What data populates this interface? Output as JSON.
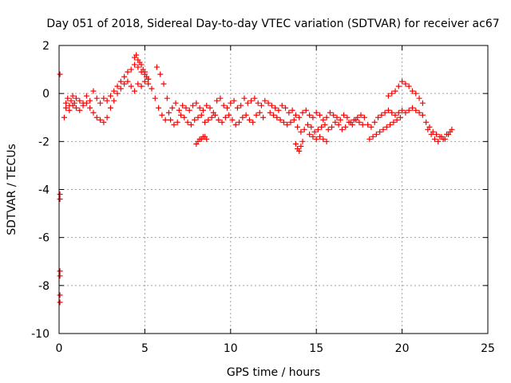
{
  "chart_data": {
    "type": "scatter",
    "title": "Day 051 of 2018, Sidereal Day-to-day VTEC variation (SDTVAR) for receiver ac67",
    "xlabel": "GPS time / hours",
    "ylabel": "SDTVAR / TECUs",
    "xlim": [
      0,
      25
    ],
    "ylim": [
      -10,
      2
    ],
    "xticks": [
      0,
      5,
      10,
      15,
      20,
      25
    ],
    "yticks": [
      -10,
      -8,
      -6,
      -4,
      -2,
      0,
      2
    ],
    "xtick_labels": [
      "0",
      "5",
      "10",
      "15",
      "20",
      "25"
    ],
    "ytick_labels": [
      "-10",
      "-8",
      "-6",
      "-4",
      "-2",
      "0",
      "2"
    ],
    "grid": true,
    "marker": "plus",
    "marker_color": "#ff0000",
    "series": [
      {
        "name": "SDTVAR",
        "x": [
          0.05,
          0.05,
          0.05,
          0.05,
          0.05,
          0.05,
          0.05,
          0.3,
          0.4,
          0.5,
          0.6,
          0.7,
          0.8,
          0.9,
          1.0,
          1.2,
          1.4,
          1.6,
          1.8,
          2.0,
          2.2,
          2.4,
          2.6,
          2.8,
          3.0,
          3.2,
          3.4,
          3.6,
          3.8,
          4.0,
          4.2,
          4.4,
          4.6,
          4.8,
          5.0,
          5.2,
          5.4,
          0.4,
          0.6,
          0.8,
          1.0,
          1.2,
          1.4,
          1.6,
          1.8,
          2.0,
          2.2,
          2.4,
          2.6,
          2.8,
          3.0,
          3.2,
          3.4,
          3.6,
          3.8,
          4.0,
          4.2,
          4.4,
          4.6,
          4.8,
          5.0,
          5.2,
          4.4,
          4.5,
          4.6,
          4.7,
          4.8,
          4.9,
          5.0,
          5.1,
          5.2,
          5.6,
          5.8,
          6.0,
          6.2,
          6.4,
          6.6,
          6.8,
          7.0,
          7.2,
          7.4,
          7.6,
          7.8,
          8.0,
          8.2,
          8.4,
          8.6,
          8.8,
          9.0,
          9.2,
          9.4,
          9.6,
          9.8,
          10.0,
          10.2,
          10.4,
          10.6,
          10.8,
          11.0,
          11.2,
          11.4,
          11.6,
          11.8,
          12.0,
          5.7,
          5.9,
          6.1,
          6.3,
          6.5,
          6.7,
          6.9,
          7.1,
          7.3,
          7.5,
          7.7,
          7.9,
          8.1,
          8.3,
          8.5,
          8.7,
          8.9,
          9.1,
          9.3,
          9.5,
          9.7,
          9.9,
          10.1,
          10.3,
          10.5,
          10.7,
          10.9,
          11.1,
          11.3,
          11.5,
          11.7,
          11.9,
          8.0,
          8.1,
          8.2,
          8.3,
          8.4,
          8.5,
          8.6,
          12.2,
          12.4,
          12.6,
          12.8,
          13.0,
          13.2,
          13.4,
          13.6,
          13.8,
          14.0,
          14.2,
          14.4,
          14.6,
          14.8,
          15.0,
          15.2,
          15.4,
          15.6,
          15.8,
          16.0,
          16.2,
          16.4,
          16.6,
          16.8,
          17.0,
          17.2,
          17.4,
          17.6,
          17.8,
          12.3,
          12.5,
          12.7,
          12.9,
          13.1,
          13.3,
          13.5,
          13.7,
          13.9,
          14.1,
          14.3,
          14.5,
          14.7,
          14.9,
          15.1,
          15.3,
          15.5,
          15.7,
          15.9,
          16.1,
          16.3,
          16.5,
          16.7,
          16.9,
          17.1,
          17.3,
          17.5,
          17.7,
          13.8,
          13.9,
          14.0,
          14.1,
          14.2,
          14.6,
          14.8,
          15.0,
          15.2,
          15.4,
          15.6,
          18.0,
          18.2,
          18.4,
          18.6,
          18.8,
          19.0,
          19.2,
          19.4,
          19.6,
          19.8,
          20.0,
          20.2,
          20.4,
          20.6,
          20.8,
          21.0,
          21.2,
          21.4,
          21.6,
          21.8,
          22.0,
          22.2,
          22.4,
          22.6,
          22.8,
          18.1,
          18.3,
          18.5,
          18.7,
          18.9,
          19.1,
          19.3,
          19.5,
          19.7,
          19.9,
          19.2,
          19.4,
          19.6,
          19.8,
          20.0,
          20.2,
          20.4,
          20.6,
          20.8,
          21.0,
          21.2,
          21.5,
          21.7,
          21.9,
          22.1,
          22.3,
          22.5,
          22.7,
          22.9
        ],
        "y": [
          0.8,
          -4.2,
          -4.4,
          -7.4,
          -7.6,
          -8.4,
          -8.7,
          -1.0,
          -0.4,
          -0.2,
          -0.5,
          -0.3,
          -0.1,
          -0.4,
          -0.2,
          -0.3,
          -0.4,
          -0.1,
          -0.3,
          0.1,
          -0.2,
          -0.4,
          -0.2,
          -0.3,
          -0.1,
          0.1,
          0.3,
          0.5,
          0.7,
          0.9,
          1.0,
          1.2,
          1.1,
          0.9,
          0.8,
          0.6,
          0.2,
          -0.6,
          -0.7,
          -0.5,
          -0.6,
          -0.7,
          -0.5,
          -0.4,
          -0.6,
          -0.8,
          -1.0,
          -1.1,
          -1.2,
          -1.0,
          -0.6,
          -0.3,
          0.0,
          0.2,
          0.4,
          0.5,
          0.3,
          0.1,
          0.4,
          0.3,
          0.5,
          0.4,
          1.5,
          1.6,
          1.4,
          1.3,
          1.2,
          1.0,
          0.9,
          0.7,
          0.6,
          -0.2,
          -0.6,
          -0.9,
          -1.1,
          -0.8,
          -0.6,
          -0.4,
          -0.7,
          -0.5,
          -0.6,
          -0.7,
          -0.5,
          -0.4,
          -0.6,
          -0.7,
          -0.5,
          -0.6,
          -0.8,
          -0.3,
          -0.2,
          -0.5,
          -0.6,
          -0.4,
          -0.3,
          -0.6,
          -0.5,
          -0.2,
          -0.4,
          -0.3,
          -0.2,
          -0.4,
          -0.5,
          -0.3,
          1.1,
          0.8,
          0.4,
          -0.2,
          -1.1,
          -1.3,
          -1.2,
          -0.9,
          -1.0,
          -1.2,
          -1.3,
          -1.1,
          -1.0,
          -0.9,
          -1.2,
          -1.1,
          -1.0,
          -0.9,
          -1.1,
          -1.2,
          -1.0,
          -0.9,
          -1.1,
          -1.3,
          -1.2,
          -1.0,
          -0.9,
          -1.1,
          -1.2,
          -0.9,
          -0.8,
          -1.0,
          -2.1,
          -2.0,
          -1.9,
          -1.9,
          -1.8,
          -1.8,
          -1.9,
          -0.4,
          -0.5,
          -0.6,
          -0.7,
          -0.5,
          -0.6,
          -0.8,
          -0.7,
          -0.9,
          -1.0,
          -0.8,
          -0.7,
          -0.9,
          -1.0,
          -0.8,
          -0.9,
          -1.1,
          -1.0,
          -0.8,
          -0.9,
          -1.0,
          -1.1,
          -0.9,
          -1.0,
          -1.2,
          -1.1,
          -1.0,
          -0.9,
          -1.0,
          -0.8,
          -0.9,
          -1.0,
          -1.1,
          -1.2,
          -1.3,
          -1.2,
          -1.1,
          -1.4,
          -1.6,
          -1.5,
          -1.3,
          -1.4,
          -1.6,
          -1.5,
          -1.4,
          -1.3,
          -1.5,
          -1.4,
          -1.2,
          -1.3,
          -1.5,
          -1.4,
          -1.2,
          -1.3,
          -1.1,
          -1.2,
          -1.3,
          -2.1,
          -2.3,
          -2.4,
          -2.2,
          -2.0,
          -1.7,
          -1.8,
          -1.9,
          -1.8,
          -1.9,
          -2.0,
          -1.3,
          -1.4,
          -1.2,
          -1.0,
          -0.9,
          -0.8,
          -0.7,
          -0.8,
          -0.9,
          -0.8,
          -0.7,
          -0.8,
          -0.7,
          -0.6,
          -0.7,
          -0.8,
          -0.9,
          -1.2,
          -1.4,
          -1.6,
          -1.7,
          -1.8,
          -1.9,
          -1.7,
          -1.6,
          -1.9,
          -1.8,
          -1.7,
          -1.6,
          -1.5,
          -1.4,
          -1.3,
          -1.2,
          -1.1,
          -1.0,
          -0.1,
          0.0,
          0.1,
          0.3,
          0.5,
          0.4,
          0.3,
          0.1,
          0.0,
          -0.2,
          -0.4,
          -1.5,
          -1.7,
          -1.9,
          -2.0,
          -1.8,
          -1.9,
          -1.7,
          -1.5
        ]
      }
    ]
  }
}
